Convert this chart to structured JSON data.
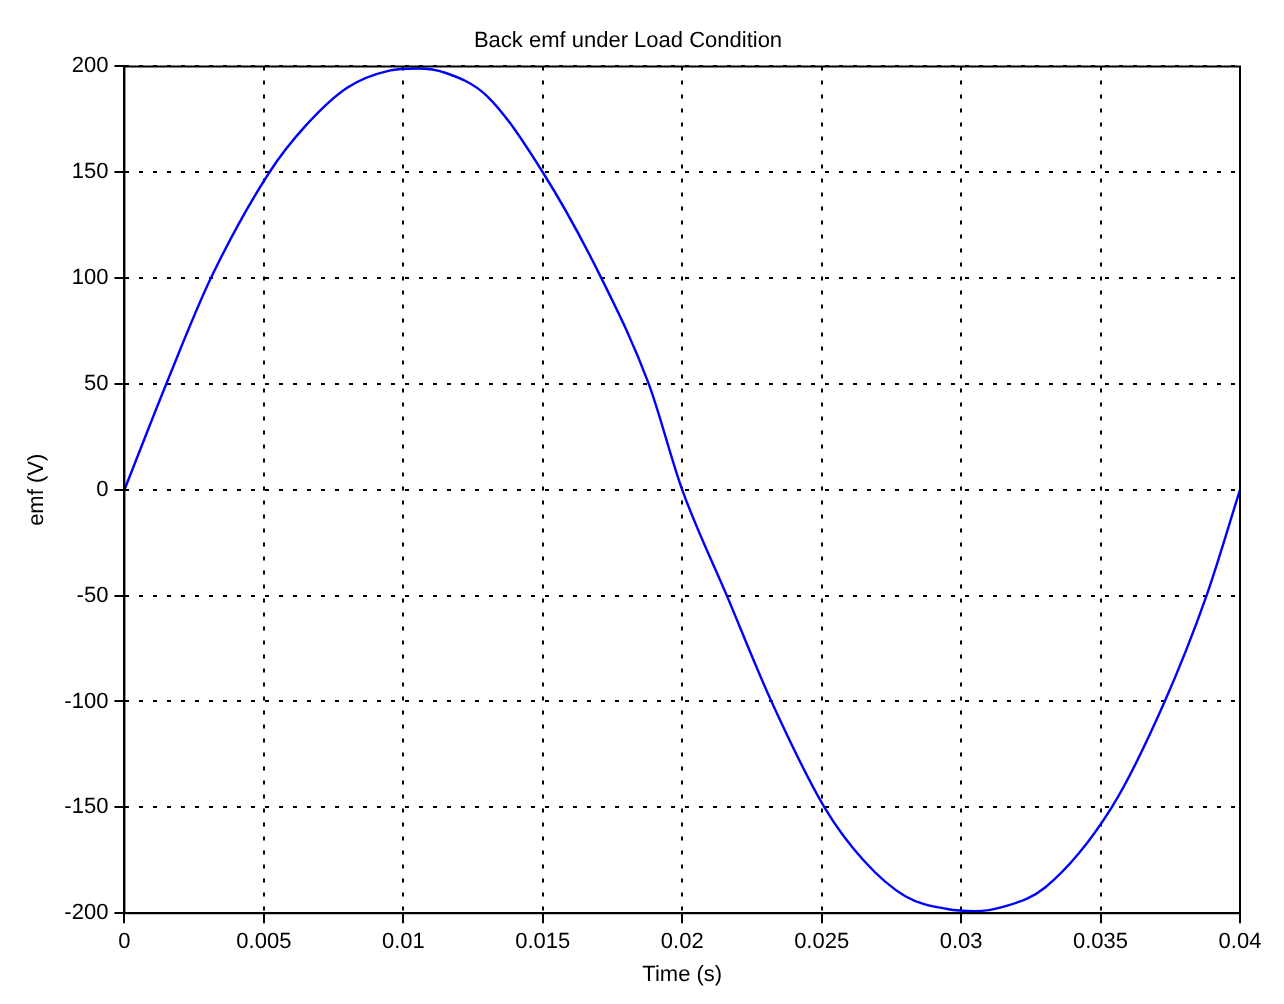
{
  "chart_data": {
    "type": "line",
    "title": "Back emf under Load Condition",
    "xlabel": "Time (s)",
    "ylabel": "emf (V)",
    "x": [
      0,
      0.0015,
      0.0031,
      0.0052,
      0.0065,
      0.008,
      0.0095,
      0.0105,
      0.0115,
      0.013,
      0.015,
      0.0171,
      0.0188,
      0.02,
      0.0216,
      0.0232,
      0.0251,
      0.0265,
      0.028,
      0.0295,
      0.0305,
      0.0315,
      0.033,
      0.0354,
      0.0373,
      0.0388,
      0.04
    ],
    "series": [
      {
        "color": "#0000ff",
        "values": [
          0,
          50,
          100,
          150,
          172,
          190,
          198,
          199,
          197,
          186,
          150,
          100,
          50,
          0,
          -50,
          -100,
          -150,
          -175,
          -192,
          -198,
          -199,
          -197,
          -188,
          -150,
          -100,
          -50,
          0
        ]
      }
    ],
    "xlim": [
      0,
      0.04
    ],
    "xticks": [
      0,
      0.005,
      0.01,
      0.015,
      0.02,
      0.025,
      0.03,
      0.035,
      0.04
    ],
    "ylim": [
      -200,
      200
    ],
    "yticks": [
      -200,
      -150,
      -100,
      -50,
      0,
      50,
      100,
      150,
      200
    ],
    "grid": true,
    "legend": false,
    "marker": "none",
    "line_style": "solid"
  }
}
